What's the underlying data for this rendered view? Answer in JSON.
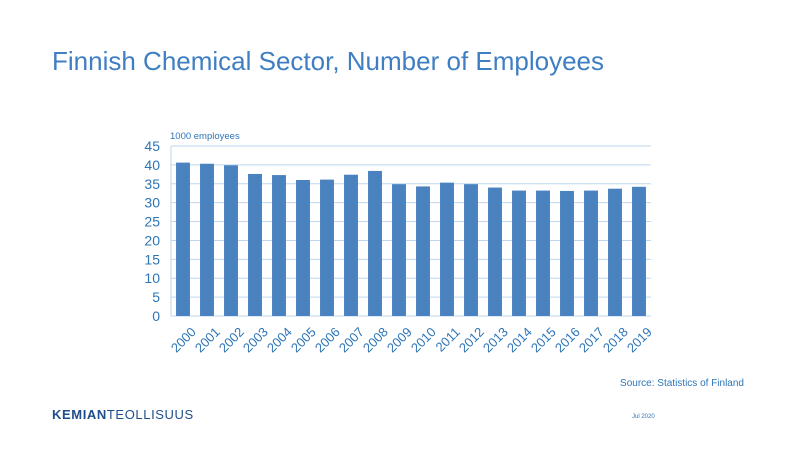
{
  "slide": {
    "title": "Finnish Chemical Sector, Number of Employees",
    "source": "Source: Statistics of Finland",
    "date": "Jul 2020"
  },
  "logo": {
    "part1": "KEMIAN",
    "part2": "TEOLLISUUS"
  },
  "colors": {
    "title": "#3f7ec2",
    "bar": "#4a81bf",
    "grid": "#bdd7ee",
    "axis_text": "#2e75b6"
  },
  "chart_data": {
    "type": "bar",
    "title": "",
    "unit_label": "1000 employees",
    "xlabel": "",
    "ylabel": "",
    "ylim": [
      0,
      45
    ],
    "yticks": [
      0,
      5,
      10,
      15,
      20,
      25,
      30,
      35,
      40,
      45
    ],
    "grid": true,
    "legend": "none",
    "categories": [
      "2000",
      "2001",
      "2002",
      "2003",
      "2004",
      "2005",
      "2006",
      "2007",
      "2008",
      "2009",
      "2010",
      "2011",
      "2012",
      "2013",
      "2014",
      "2015",
      "2016",
      "2017",
      "2018",
      "2019"
    ],
    "values": [
      40.6,
      40.3,
      39.9,
      37.6,
      37.3,
      36.0,
      36.1,
      37.4,
      38.4,
      34.9,
      34.3,
      35.3,
      34.9,
      34.0,
      33.2,
      33.2,
      33.1,
      33.2,
      33.7,
      34.2
    ]
  }
}
